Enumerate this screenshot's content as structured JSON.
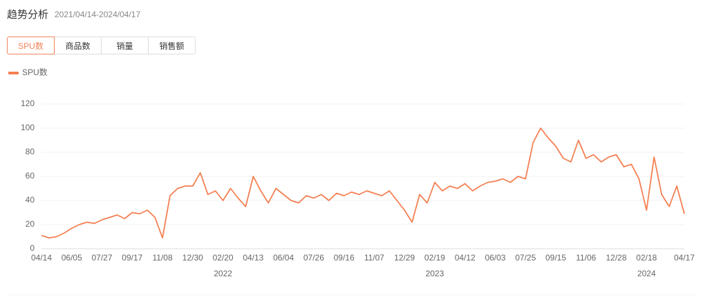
{
  "header": {
    "title": "趋势分析",
    "date_range": "2021/04/14-2024/04/17"
  },
  "tabs": [
    "SPU数",
    "商品数",
    "销量",
    "销售额"
  ],
  "active_tab": 0,
  "chart_data": {
    "type": "line",
    "categories": [
      "04/14",
      null,
      null,
      null,
      "06/05",
      null,
      null,
      null,
      "07/27",
      null,
      null,
      null,
      "09/17",
      null,
      null,
      null,
      "11/08",
      null,
      null,
      null,
      "12/30",
      null,
      null,
      null,
      "02/20",
      null,
      null,
      null,
      "04/13",
      null,
      null,
      null,
      "06/04",
      null,
      null,
      null,
      "07/26",
      null,
      null,
      null,
      "09/16",
      null,
      null,
      null,
      "11/07",
      null,
      null,
      null,
      "12/29",
      null,
      null,
      null,
      "02/19",
      null,
      null,
      null,
      "04/12",
      null,
      null,
      null,
      "06/03",
      null,
      null,
      null,
      "07/25",
      null,
      null,
      null,
      "09/15",
      null,
      null,
      null,
      "11/06",
      null,
      null,
      null,
      "12/28",
      null,
      null,
      null,
      "02/18",
      null,
      null,
      null,
      null,
      "04/17"
    ],
    "year_labels": [
      {
        "category": 24,
        "label": "2022"
      },
      {
        "category": 52,
        "label": "2023"
      },
      {
        "category": 80,
        "label": "2024"
      }
    ],
    "series": [
      {
        "name": "SPU数",
        "color": "#f47f52",
        "values": [
          11,
          9,
          10,
          13,
          17,
          20,
          22,
          21,
          24,
          26,
          28,
          25,
          30,
          29,
          32,
          26,
          9,
          44,
          50,
          52,
          52,
          63,
          45,
          48,
          40,
          50,
          42,
          35,
          60,
          48,
          38,
          50,
          45,
          40,
          38,
          44,
          42,
          45,
          40,
          46,
          44,
          47,
          45,
          48,
          46,
          44,
          48,
          40,
          32,
          22,
          45,
          38,
          55,
          48,
          52,
          50,
          54,
          48,
          52,
          55,
          56,
          58,
          55,
          60,
          58,
          88,
          100,
          92,
          85,
          75,
          72,
          90,
          75,
          78,
          72,
          76,
          78,
          68,
          70,
          58,
          32,
          76,
          45,
          35,
          52,
          29
        ]
      }
    ],
    "ylim": [
      0,
      120
    ],
    "yticks": [
      0,
      20,
      40,
      60,
      80,
      100,
      120
    ],
    "grid": true,
    "legend": "top-left"
  }
}
